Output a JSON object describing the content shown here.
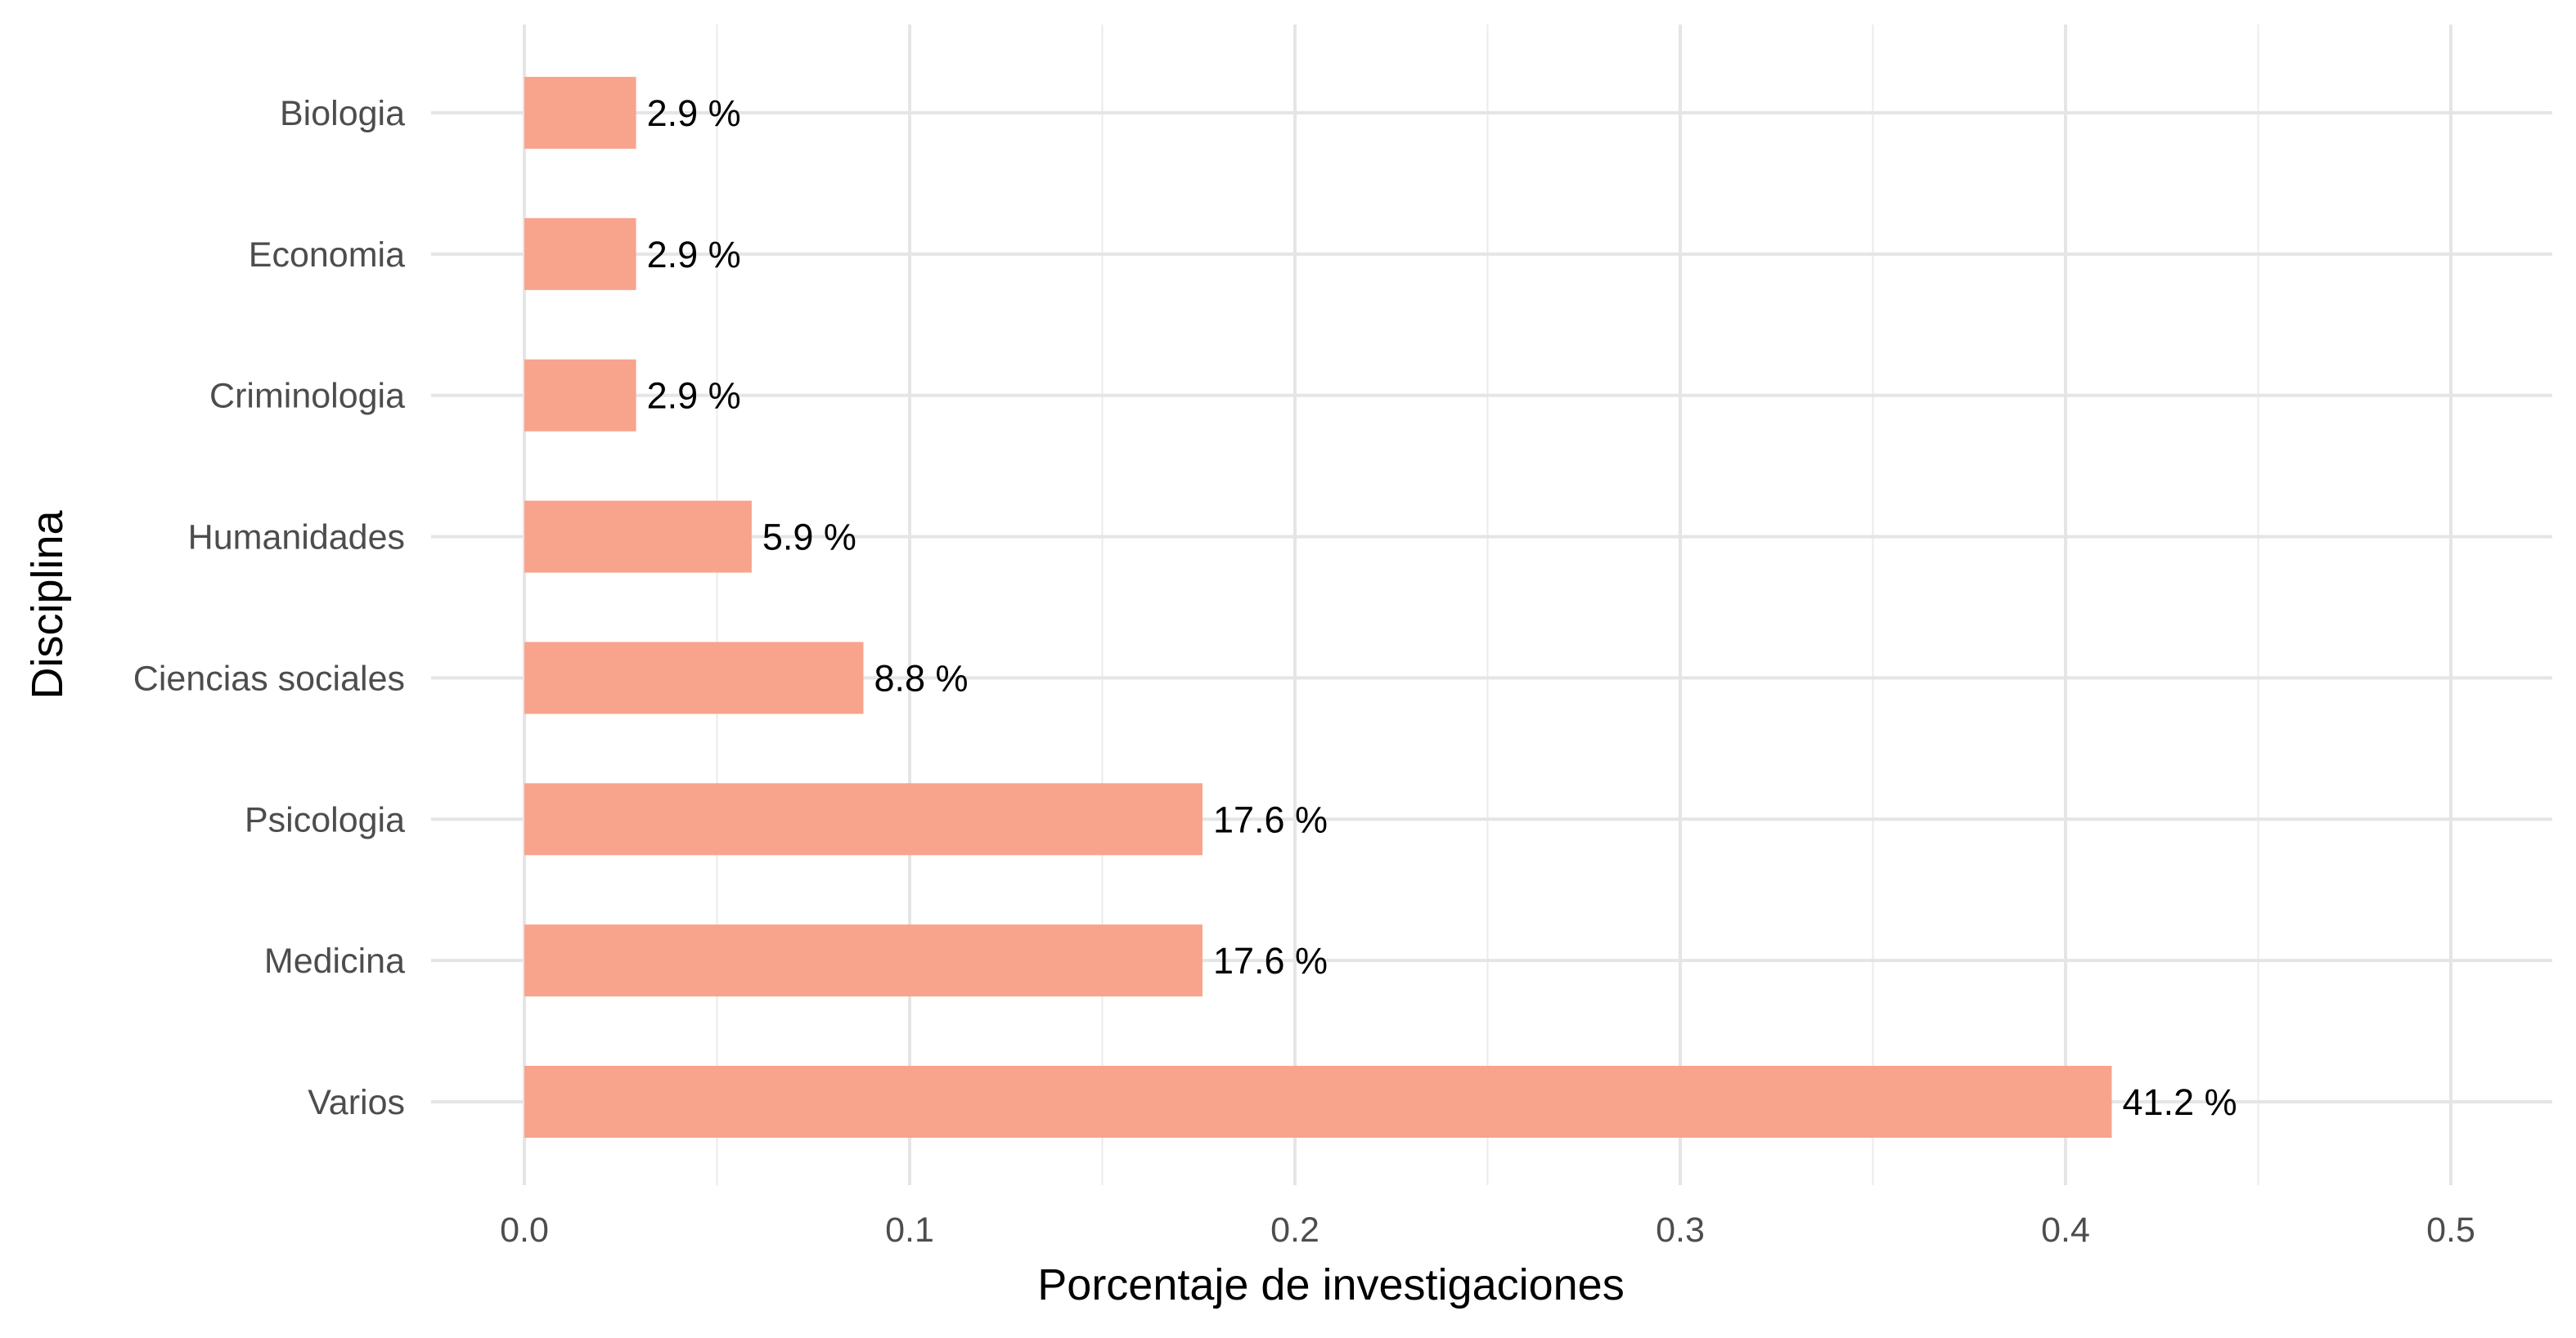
{
  "chart_data": {
    "type": "bar",
    "orientation": "horizontal",
    "categories": [
      "Varios",
      "Medicina",
      "Psicologia",
      "Ciencias sociales",
      "Humanidades",
      "Criminologia",
      "Economia",
      "Biologia"
    ],
    "values": [
      0.412,
      0.176,
      0.176,
      0.088,
      0.059,
      0.029,
      0.029,
      0.029
    ],
    "data_labels": [
      "41.2 %",
      "17.6 %",
      "17.6 %",
      "8.8 %",
      "5.9 %",
      "2.9 %",
      "2.9 %",
      "2.9 %"
    ],
    "xlabel": "Porcentaje de investigaciones",
    "ylabel": "Disciplina",
    "xlim": [
      0,
      0.5
    ],
    "x_ticks": [
      0.0,
      0.1,
      0.2,
      0.3,
      0.4,
      0.5
    ],
    "x_tick_labels": [
      "0.0",
      "0.1",
      "0.2",
      "0.3",
      "0.4",
      "0.5"
    ],
    "grid": true,
    "legend": "none",
    "bar_color": "#F8A48C"
  }
}
